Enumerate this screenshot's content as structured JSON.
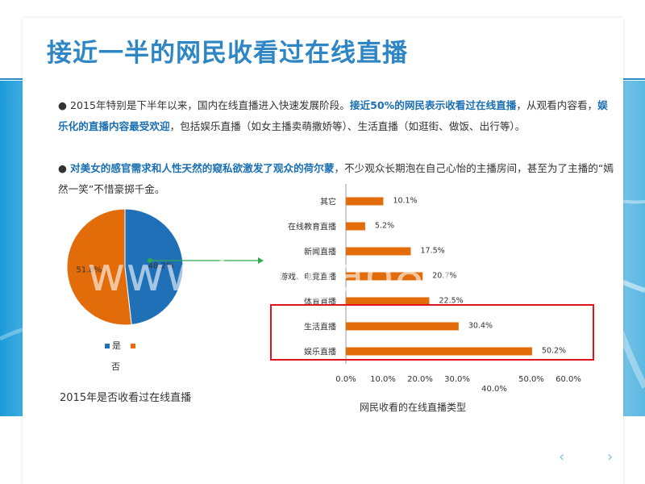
{
  "title": "接近一半的网民收看过在线直播",
  "para1": {
    "bullet": "●",
    "t1": " 2015年特别是下半年以来，国内在线直播进入快速发展阶段。",
    "h1": "接近50%的网民表示收看过在线直播",
    "t2": "，从观看内容看，",
    "h2": "娱乐化的直播内容最受欢迎",
    "t3": "，包括娱乐直播（如女主播卖萌撒娇等）、生活直播（如逛街、做饭、出行等）。"
  },
  "para2": {
    "bullet": "● ",
    "h1": "对美女的感官需求和人性天然的窥私欲激发了观众的荷尔蒙",
    "t1": "，不少观众长期泡在自己心怡的主播房间，甚至为了主播的“嫣然一笑”不惜豪掷千金。"
  },
  "colors": {
    "blue": "#2070b8",
    "orange": "#e36c0a",
    "title": "#2f86c4",
    "highlight": "#e0141b"
  },
  "watermark": "www.baogao8.com",
  "nav": {
    "prev": "‹",
    "next": "›"
  },
  "chart_data": [
    {
      "type": "pie",
      "title": "2015年是否收看过在线直播",
      "slices": [
        {
          "name": "是",
          "value": 48.2,
          "label": "48.2%",
          "color": "#2070b8"
        },
        {
          "name": "否",
          "value": 51.8,
          "label": "51.8%",
          "color": "#e36c0a"
        }
      ],
      "legend": [
        "是",
        "否"
      ],
      "legend_placement": "bottom"
    },
    {
      "type": "bar",
      "orientation": "horizontal",
      "title": "网民收看的在线直播类型",
      "categories": [
        "其它",
        "在线教育直播",
        "新闻直播",
        "游戏、电竞直播",
        "体育直播",
        "生活直播",
        "娱乐直播"
      ],
      "values": [
        10.1,
        5.2,
        17.5,
        20.7,
        22.5,
        30.4,
        50.2
      ],
      "labels": [
        "10.1%",
        "5.2%",
        "17.5%",
        "20.7%",
        "22.5%",
        "30.4%",
        "50.2%"
      ],
      "xlim": [
        0,
        60
      ],
      "xticks": [
        "0.0%",
        "10.0%",
        "20.0%",
        "30.0%",
        "40.0%",
        "50.0%",
        "60.0%"
      ],
      "color": "#e36c0a",
      "grid": false
    }
  ]
}
